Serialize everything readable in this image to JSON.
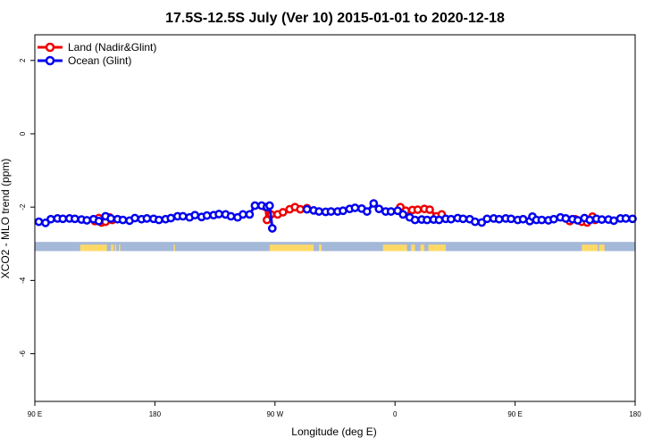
{
  "chart_data": {
    "type": "line",
    "title": "17.5S-12.5S July (Ver 10)   2015-01-01 to 2020-12-18",
    "xlabel": "Longitude (deg E)",
    "ylabel": "XCO2 - MLO trend (ppm)",
    "xlim": [
      90,
      540
    ],
    "ylim": [
      -7.3,
      2.7
    ],
    "x_ticks": [
      {
        "value": 90,
        "label": "90 E"
      },
      {
        "value": 180,
        "label": "180"
      },
      {
        "value": 270,
        "label": "90 W"
      },
      {
        "value": 360,
        "label": "0"
      },
      {
        "value": 450,
        "label": "90 E"
      },
      {
        "value": 540,
        "label": "180"
      }
    ],
    "y_ticks": [
      {
        "value": 2,
        "label": "2"
      },
      {
        "value": 0,
        "label": "0"
      },
      {
        "value": -2,
        "label": "-2"
      },
      {
        "value": -4,
        "label": "-4"
      },
      {
        "value": -6,
        "label": "-6"
      }
    ],
    "legend_position": "top-left",
    "colors": {
      "land": "#ee0000",
      "ocean": "#0000ee",
      "land_strip": "#ffd966",
      "ocean_strip": "#a4b8d8"
    },
    "series": [
      {
        "name": "Land (Nadir&Glint)",
        "color": "#ee0000",
        "points": [
          [
            135,
            -2.38
          ],
          [
            138,
            -2.3
          ],
          [
            140,
            -2.42
          ],
          [
            143,
            -2.4
          ],
          [
            146,
            -2.28
          ],
          [
            148,
            -2.35
          ],
          [
            263,
            -2.0
          ],
          [
            264,
            -2.35
          ],
          [
            267,
            -2.2
          ],
          [
            272,
            -2.2
          ],
          [
            276,
            -2.14
          ],
          [
            281,
            -2.06
          ],
          [
            285,
            -2.0
          ],
          [
            289,
            -2.06
          ],
          [
            294,
            -2.03
          ],
          [
            364,
            -2.0
          ],
          [
            368,
            -2.1
          ],
          [
            373,
            -2.08
          ],
          [
            377,
            -2.07
          ],
          [
            382,
            -2.05
          ],
          [
            386,
            -2.07
          ],
          [
            391,
            -2.25
          ],
          [
            395,
            -2.2
          ],
          [
            491,
            -2.38
          ],
          [
            495,
            -2.33
          ],
          [
            500,
            -2.4
          ],
          [
            504,
            -2.42
          ],
          [
            508,
            -2.26
          ],
          [
            510,
            -2.35
          ]
        ]
      },
      {
        "name": "Ocean (Glint)",
        "color": "#0000ee",
        "points": [
          [
            93,
            -2.4
          ],
          [
            98,
            -2.43
          ],
          [
            102,
            -2.33
          ],
          [
            107,
            -2.31
          ],
          [
            111,
            -2.32
          ],
          [
            116,
            -2.31
          ],
          [
            120,
            -2.32
          ],
          [
            125,
            -2.34
          ],
          [
            129,
            -2.36
          ],
          [
            134,
            -2.33
          ],
          [
            138,
            -2.38
          ],
          [
            143,
            -2.25
          ],
          [
            147,
            -2.31
          ],
          [
            152,
            -2.33
          ],
          [
            156,
            -2.35
          ],
          [
            161,
            -2.37
          ],
          [
            165,
            -2.3
          ],
          [
            170,
            -2.33
          ],
          [
            174,
            -2.31
          ],
          [
            179,
            -2.32
          ],
          [
            183,
            -2.35
          ],
          [
            188,
            -2.33
          ],
          [
            192,
            -2.3
          ],
          [
            197,
            -2.25
          ],
          [
            201,
            -2.25
          ],
          [
            206,
            -2.28
          ],
          [
            210,
            -2.22
          ],
          [
            215,
            -2.27
          ],
          [
            219,
            -2.23
          ],
          [
            224,
            -2.22
          ],
          [
            228,
            -2.19
          ],
          [
            233,
            -2.2
          ],
          [
            237,
            -2.25
          ],
          [
            242,
            -2.28
          ],
          [
            246,
            -2.2
          ],
          [
            251,
            -2.2
          ],
          [
            255,
            -1.96
          ],
          [
            260,
            -1.96
          ],
          [
            264,
            -2.0
          ],
          [
            266,
            -1.96
          ],
          [
            268,
            -2.58
          ],
          [
            294,
            -2.06
          ],
          [
            299,
            -2.09
          ],
          [
            303,
            -2.12
          ],
          [
            308,
            -2.13
          ],
          [
            312,
            -2.12
          ],
          [
            317,
            -2.12
          ],
          [
            321,
            -2.1
          ],
          [
            326,
            -2.05
          ],
          [
            330,
            -2.02
          ],
          [
            335,
            -2.04
          ],
          [
            339,
            -2.12
          ],
          [
            344,
            -1.9
          ],
          [
            348,
            -2.05
          ],
          [
            353,
            -2.12
          ],
          [
            357,
            -2.12
          ],
          [
            362,
            -2.1
          ],
          [
            366,
            -2.2
          ],
          [
            371,
            -2.28
          ],
          [
            375,
            -2.35
          ],
          [
            380,
            -2.34
          ],
          [
            384,
            -2.35
          ],
          [
            389,
            -2.34
          ],
          [
            393,
            -2.35
          ],
          [
            398,
            -2.32
          ],
          [
            402,
            -2.33
          ],
          [
            407,
            -2.3
          ],
          [
            411,
            -2.32
          ],
          [
            416,
            -2.33
          ],
          [
            420,
            -2.4
          ],
          [
            425,
            -2.42
          ],
          [
            429,
            -2.32
          ],
          [
            434,
            -2.31
          ],
          [
            438,
            -2.33
          ],
          [
            443,
            -2.31
          ],
          [
            447,
            -2.32
          ],
          [
            452,
            -2.35
          ],
          [
            456,
            -2.33
          ],
          [
            461,
            -2.38
          ],
          [
            463,
            -2.26
          ],
          [
            466,
            -2.35
          ],
          [
            470,
            -2.35
          ],
          [
            475,
            -2.36
          ],
          [
            479,
            -2.33
          ],
          [
            484,
            -2.28
          ],
          [
            488,
            -2.31
          ],
          [
            493,
            -2.33
          ],
          [
            497,
            -2.36
          ],
          [
            502,
            -2.3
          ],
          [
            506,
            -2.35
          ],
          [
            511,
            -2.32
          ],
          [
            515,
            -2.34
          ],
          [
            520,
            -2.34
          ],
          [
            524,
            -2.37
          ],
          [
            529,
            -2.31
          ],
          [
            533,
            -2.31
          ],
          [
            538,
            -2.32
          ]
        ]
      }
    ],
    "land_strip": {
      "y_range": [
        -3.2,
        -2.95
      ],
      "land_segments": [
        [
          124,
          144
        ],
        [
          147,
          147
        ],
        [
          148,
          148
        ],
        [
          150,
          150
        ],
        [
          153,
          153
        ],
        [
          194,
          194
        ],
        [
          266,
          299
        ],
        [
          303,
          305
        ],
        [
          351,
          369
        ],
        [
          372,
          375
        ],
        [
          379,
          382
        ],
        [
          385,
          398
        ],
        [
          500,
          512
        ],
        [
          513,
          517
        ]
      ]
    }
  }
}
